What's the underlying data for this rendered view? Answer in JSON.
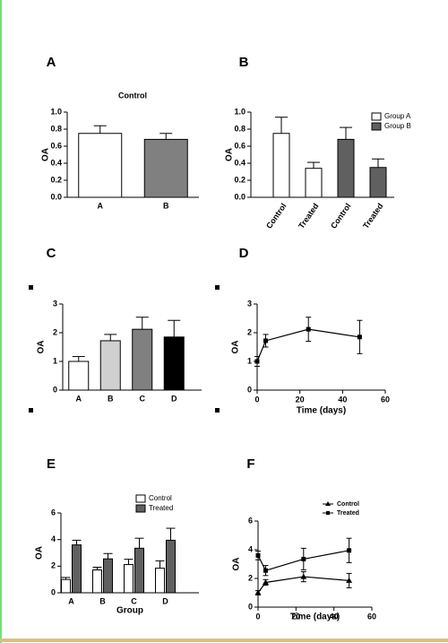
{
  "chart_data": [
    {
      "type": "bar",
      "panel": "A",
      "title": "Control",
      "ylabel": "OA",
      "categories": [
        "A",
        "B"
      ],
      "values": [
        0.75,
        0.68
      ],
      "errors": [
        0.09,
        0.07
      ],
      "colors": [
        "#ffffff",
        "#808080"
      ],
      "ylim": [
        0,
        1
      ],
      "yticks": [
        {
          "value": 0,
          "label": "0.0"
        },
        0.2,
        0.4,
        0.6,
        0.8,
        {
          "value": 1,
          "label": "1.0"
        }
      ]
    },
    {
      "type": "bar",
      "panel": "B",
      "ylabel": "OA",
      "categories": [
        "Control",
        "Treated",
        "Control",
        "Treated"
      ],
      "series": [
        {
          "name": "Group A",
          "color": "#ffffff",
          "values": [
            0.75,
            0.34,
            null,
            null
          ],
          "errors": [
            0.19,
            0.07,
            null,
            null
          ]
        },
        {
          "name": "Group B",
          "color": "#606060",
          "values": [
            null,
            null,
            0.68,
            0.35
          ],
          "errors": [
            null,
            null,
            0.14,
            0.1
          ]
        }
      ],
      "ylim": [
        0,
        1
      ],
      "yticks": [
        {
          "value": 0,
          "label": "0.0"
        },
        0.2,
        0.4,
        0.6,
        0.8,
        {
          "value": 1,
          "label": "1.0"
        }
      ]
    },
    {
      "type": "bar",
      "panel": "C",
      "ylabel": "OA",
      "categories": [
        "A",
        "B",
        "C",
        "D"
      ],
      "values": [
        1.0,
        1.72,
        2.12,
        1.85
      ],
      "errors": [
        0.17,
        0.22,
        0.42,
        0.58
      ],
      "colors": [
        "#ffffff",
        "#d0d0d0",
        "#808080",
        "#000000"
      ],
      "ylim": [
        0,
        3
      ],
      "yticks": [
        0,
        1,
        2,
        3
      ]
    },
    {
      "type": "line",
      "panel": "D",
      "ylabel": "OA",
      "xlabel": "Time (days)",
      "x": [
        0,
        4,
        24,
        48
      ],
      "values": [
        1.0,
        1.72,
        2.12,
        1.85
      ],
      "errors": [
        0.17,
        0.22,
        0.42,
        0.58
      ],
      "marker": "square",
      "xlim": [
        0,
        60
      ],
      "xticks": [
        0,
        20,
        40,
        60
      ],
      "ylim": [
        0,
        3
      ],
      "yticks": [
        0,
        1,
        2,
        3
      ]
    },
    {
      "type": "bar",
      "panel": "E",
      "ylabel": "OA",
      "xlabel": "Group",
      "categories": [
        "A",
        "B",
        "C",
        "D"
      ],
      "series": [
        {
          "name": "Control",
          "color": "#ffffff",
          "values": [
            1.0,
            1.72,
            2.12,
            1.85
          ],
          "errors": [
            0.15,
            0.2,
            0.4,
            0.55
          ]
        },
        {
          "name": "Treated",
          "color": "#606060",
          "values": [
            3.6,
            2.55,
            3.35,
            3.95
          ],
          "errors": [
            0.35,
            0.4,
            0.75,
            0.9
          ]
        }
      ],
      "ylim": [
        0,
        6
      ],
      "yticks": [
        0,
        2,
        4,
        6
      ]
    },
    {
      "type": "line",
      "panel": "F",
      "ylabel": "OA",
      "xlabel": "Time (days)",
      "x": [
        0,
        4,
        24,
        48
      ],
      "series": [
        {
          "name": "Control",
          "color": "#000000",
          "marker": "triangle",
          "values": [
            1.0,
            1.72,
            2.12,
            1.85
          ],
          "errors": [
            0.15,
            0.2,
            0.35,
            0.5
          ]
        },
        {
          "name": "Treated",
          "color": "#000000",
          "marker": "square",
          "values": [
            3.6,
            2.55,
            3.35,
            3.95
          ],
          "errors": [
            0.3,
            0.35,
            0.75,
            0.85
          ]
        }
      ],
      "xlim": [
        0,
        60
      ],
      "xticks": [
        0,
        20,
        40,
        60
      ],
      "ylim": [
        0,
        6
      ],
      "yticks": [
        0,
        2,
        4,
        6
      ]
    }
  ]
}
